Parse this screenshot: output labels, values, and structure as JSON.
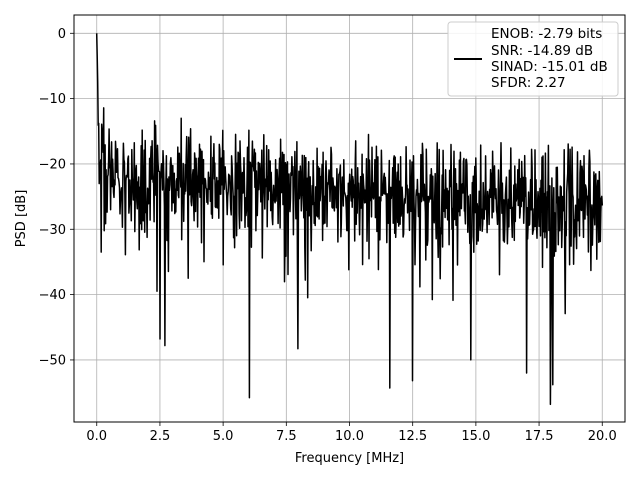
{
  "chart_data": {
    "type": "line",
    "xlabel": "Frequency [MHz]",
    "ylabel": "PSD [dB]",
    "xlim": [
      -0.9,
      20.9
    ],
    "ylim": [
      -59.5,
      2.8
    ],
    "xticks": [
      0.0,
      2.5,
      5.0,
      7.5,
      10.0,
      12.5,
      15.0,
      17.5,
      20.0
    ],
    "xtick_labels": [
      "0.0",
      "2.5",
      "5.0",
      "7.5",
      "10.0",
      "12.5",
      "15.0",
      "17.5",
      "20.0"
    ],
    "yticks": [
      0,
      -10,
      -20,
      -30,
      -40,
      -50
    ],
    "ytick_labels": [
      "0",
      "−10",
      "−20",
      "−30",
      "−40",
      "−50"
    ],
    "grid": true,
    "legend_position": "top-right",
    "legend": {
      "lines": [
        "ENOB: -2.79 bits",
        "SNR: -14.89 dB",
        "SINAD: -15.01 dB",
        "SFDR: 2.27"
      ]
    },
    "series": [
      {
        "color": "#000000",
        "x_range": [
          0,
          20
        ],
        "points": 1024,
        "peak": {
          "x": 0.0,
          "y": 0.0
        },
        "noise_floor_db": {
          "start": -22,
          "end": -27
        },
        "upper_envelope_db": {
          "start": -14,
          "end": -17
        },
        "notable_dips": [
          {
            "x": 0.18,
            "y": -33.5
          },
          {
            "x": 2.5,
            "y": -46.8
          },
          {
            "x": 2.7,
            "y": -47.8
          },
          {
            "x": 6.05,
            "y": -55.8
          },
          {
            "x": 7.95,
            "y": -48.3
          },
          {
            "x": 11.6,
            "y": -54.3
          },
          {
            "x": 12.5,
            "y": -53.2
          },
          {
            "x": 14.8,
            "y": -50.0
          },
          {
            "x": 17.0,
            "y": -52.0
          },
          {
            "x": 17.95,
            "y": -56.8
          },
          {
            "x": 18.05,
            "y": -53.8
          }
        ]
      }
    ]
  }
}
